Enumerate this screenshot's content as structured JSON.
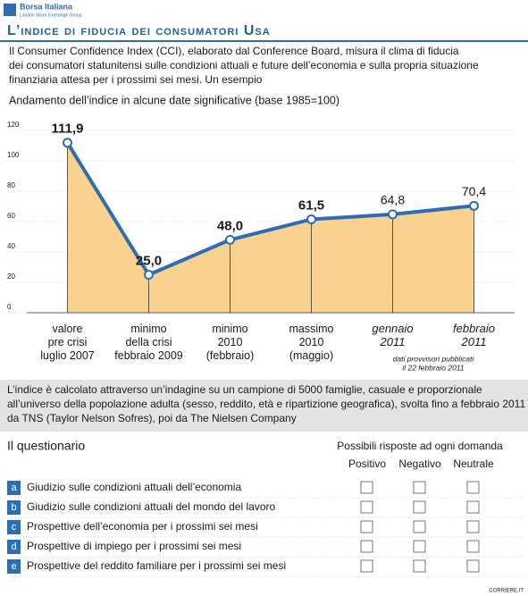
{
  "header": {
    "brand": "Borsa Italiana",
    "brand_sub": "London Stock Exchange Group",
    "title": "L’indice di fiducia dei consumatori Usa"
  },
  "intro": [
    "Il Consumer Confidence Index (CCI), elaborato dal Conference Board, misura il clima di fiducia",
    "dei consumatori statunitensi sulle condizioni attuali e future dell’economia e sulla propria situazione",
    "finanziaria attesa per i prossimi sei mesi. Un esempio"
  ],
  "chart_data": {
    "type": "area-line",
    "title": "Andamento dell’indice in alcune date significative (base 1985=100)",
    "categories": [
      "valore\npre crisi\nluglio 2007",
      "minimo\ndella crisi\nfebbraio 2009",
      "minimo\n2010\n(febbraio)",
      "massimo\n2010\n(maggio)",
      "gennaio\n2011",
      "febbraio\n2011"
    ],
    "values": [
      111.9,
      25.0,
      48.0,
      61.5,
      64.8,
      70.4
    ],
    "value_labels": [
      "111,9",
      "25,0",
      "48,0",
      "61,5",
      "64,8",
      "70,4"
    ],
    "color": "#2f6db3",
    "fill": "#f8d28e",
    "ylim": [
      0,
      120
    ],
    "yticks": [
      0,
      20,
      40,
      60,
      80,
      100,
      120
    ],
    "note": [
      "dati provvisori pubblicati",
      "il 22 febbraio 2011"
    ]
  },
  "box_note": [
    "L’indice è calcolato attraverso un’indagine su un campione di 5000 famiglie, casuale e proporzionale",
    "all’universo della popolazione adulta (sesso, reddito, età e ripartizione geografica), svolta fino a febbraio 2011",
    "da TNS (Taylor Nelson Sofres), poi da The Nielsen Company"
  ],
  "questionnaire": {
    "title": "Il questionario",
    "answers_title": "Possibili risposte ad ogni domanda",
    "answers": [
      "Positivo",
      "Negativo",
      "Neutrale"
    ],
    "rows": [
      [
        "a",
        "Giudizio sulle condizioni attuali dell’economia"
      ],
      [
        "b",
        "Giudizio sulle condizioni attuali del mondo del lavoro"
      ],
      [
        "c",
        "Prospettive dell’economia per i prossimi sei mesi"
      ],
      [
        "d",
        "Prospettive di impiego per i prossimi sei mesi"
      ],
      [
        "e",
        "Prospettive del reddito familiare per i prossimi sei mesi"
      ]
    ]
  },
  "credit": "CORRIERE.IT"
}
